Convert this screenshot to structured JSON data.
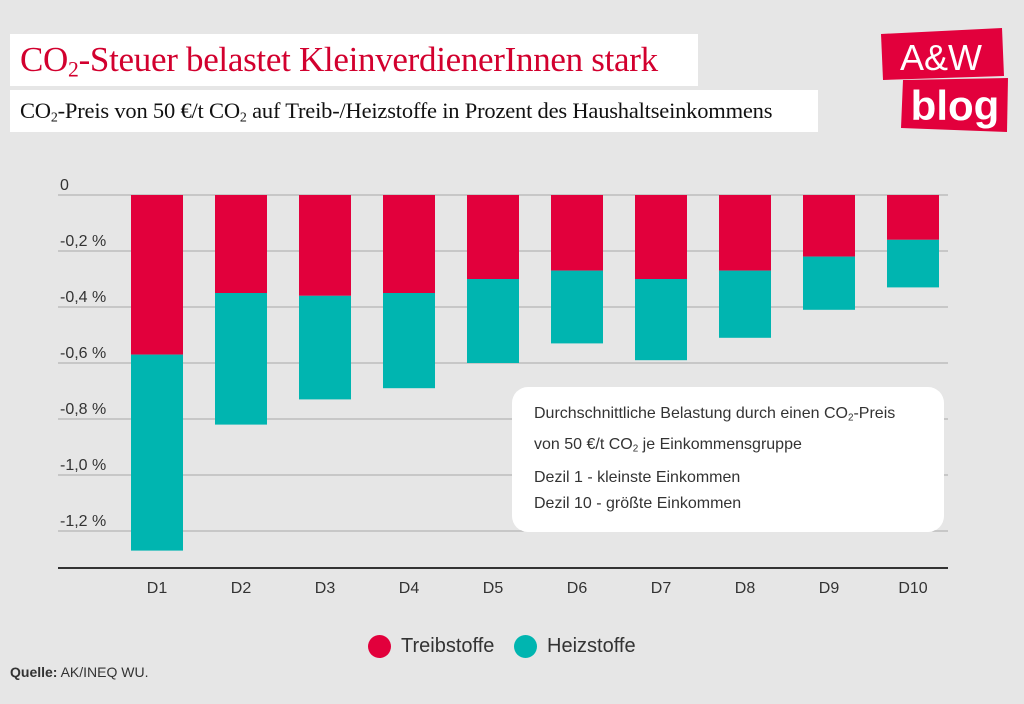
{
  "title": {
    "pre": "CO",
    "sub": "2",
    "post": "-Steuer belastet KleinverdienerInnen stark"
  },
  "subtitle": {
    "a": "CO",
    "a_sub": "2",
    "b": "-Preis von 50 €/t CO",
    "b_sub": "2",
    "c": " auf Treib-/Heizstoffe in Prozent des Haushaltseinkommens"
  },
  "logo": {
    "line1": "A&W",
    "line2": "blog"
  },
  "info": {
    "line1_pre": "Durchschnittliche Belastung durch einen CO",
    "line1_sub": "2",
    "line1_post": "-Preis",
    "line2_pre": "von 50 €/t CO",
    "line2_sub": "2",
    "line2_post": " je Einkommensgruppe",
    "line3": "Dezil 1 - kleinste Einkommen",
    "line4": "Dezil 10 - größte Einkommen"
  },
  "source": {
    "label": "Quelle:",
    "text": " AK/INEQ WU."
  },
  "colors": {
    "treibstoffe": "#e2003c",
    "heizstoffe": "#00b5b0",
    "background": "#e6e6e6",
    "title": "#d2002e"
  },
  "chart_data": {
    "type": "bar",
    "stacked": true,
    "categories": [
      "D1",
      "D2",
      "D3",
      "D4",
      "D5",
      "D6",
      "D7",
      "D8",
      "D9",
      "D10"
    ],
    "series": [
      {
        "name": "Treibstoffe",
        "values": [
          -0.57,
          -0.35,
          -0.36,
          -0.35,
          -0.3,
          -0.27,
          -0.3,
          -0.27,
          -0.22,
          -0.16
        ]
      },
      {
        "name": "Heizstoffe",
        "values": [
          -0.7,
          -0.47,
          -0.37,
          -0.34,
          -0.3,
          -0.26,
          -0.29,
          -0.24,
          -0.19,
          -0.17
        ]
      }
    ],
    "yticks": [
      0,
      -0.2,
      -0.4,
      -0.6,
      -0.8,
      -1.0,
      -1.2
    ],
    "ytick_labels": [
      "0",
      "-0,2 %",
      "-0,4 %",
      "-0,6 %",
      "-0,8 %",
      "-1,0 %",
      "-1,2 %"
    ],
    "ylim": [
      -1.3,
      0
    ],
    "grid": true,
    "legend": "bottom-center"
  }
}
